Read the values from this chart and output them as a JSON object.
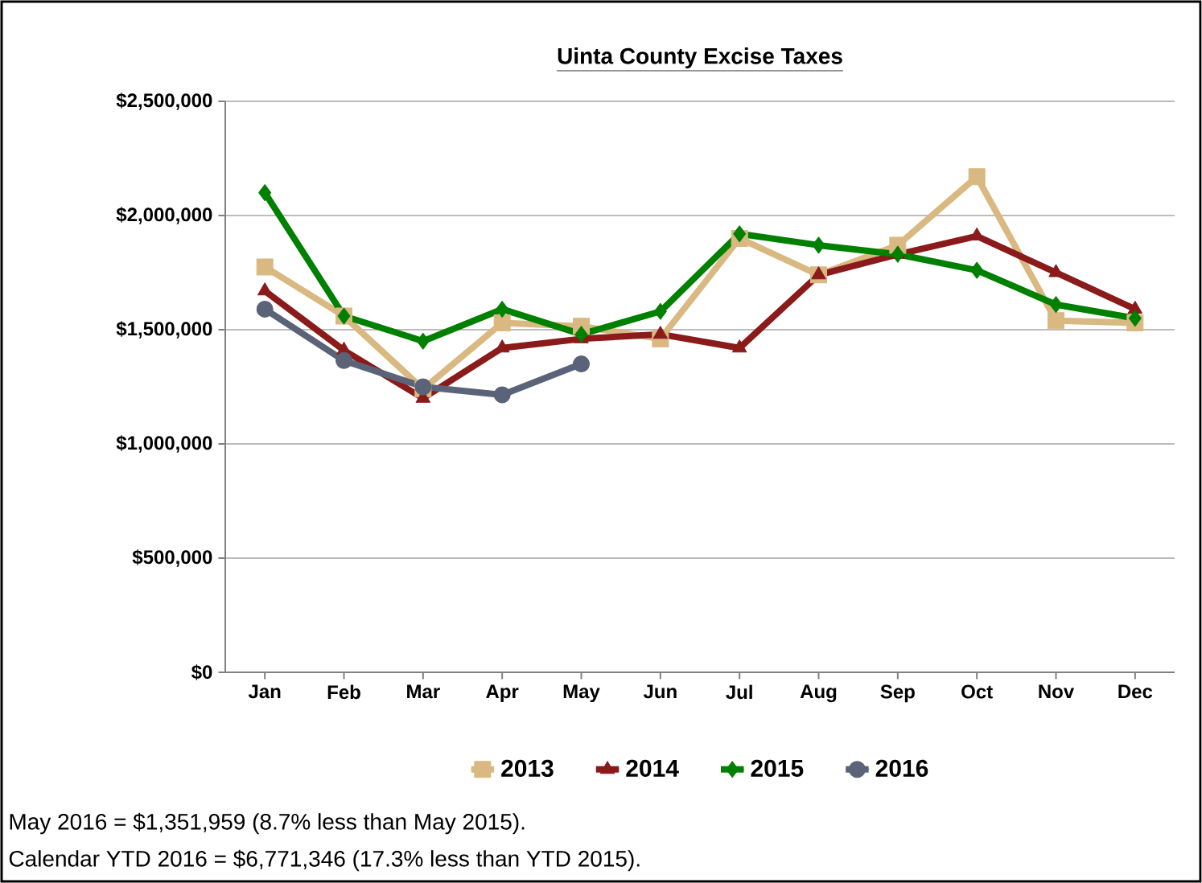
{
  "chart_data": {
    "type": "line",
    "title": "Uinta County Excise Taxes",
    "categories": [
      "Jan",
      "Feb",
      "Mar",
      "Apr",
      "May",
      "Jun",
      "Jul",
      "Aug",
      "Sep",
      "Oct",
      "Nov",
      "Dec"
    ],
    "series": [
      {
        "name": "2013",
        "color": "#d9b981",
        "marker": "square",
        "values": [
          1775000,
          1560000,
          1240000,
          1530000,
          1515000,
          1460000,
          1900000,
          1740000,
          1870000,
          2170000,
          1540000,
          1530000
        ]
      },
      {
        "name": "2014",
        "color": "#8b1a1a",
        "marker": "triangle",
        "values": [
          1670000,
          1410000,
          1200000,
          1420000,
          1460000,
          1480000,
          1420000,
          1740000,
          1830000,
          1910000,
          1750000,
          1590000
        ]
      },
      {
        "name": "2015",
        "color": "#008000",
        "marker": "diamond",
        "values": [
          2100000,
          1560000,
          1450000,
          1590000,
          1480000,
          1580000,
          1920000,
          1870000,
          1830000,
          1760000,
          1610000,
          1550000
        ]
      },
      {
        "name": "2016",
        "color": "#5a6378",
        "marker": "circle",
        "values": [
          1590000,
          1365000,
          1250000,
          1215000,
          1350000,
          null,
          null,
          null,
          null,
          null,
          null,
          null
        ]
      }
    ],
    "ylim": [
      0,
      2500000
    ],
    "yticks": [
      {
        "value": 0,
        "label": "$0"
      },
      {
        "value": 500000,
        "label": "$500,000"
      },
      {
        "value": 1000000,
        "label": "$1,000,000"
      },
      {
        "value": 1500000,
        "label": "$1,500,000"
      },
      {
        "value": 2000000,
        "label": "$2,000,000"
      },
      {
        "value": 2500000,
        "label": "$2,500,000"
      }
    ],
    "grid": "y",
    "legend": "bottom",
    "line_style": "solid",
    "annotations": [
      "May 2016 = $1,351,959 (8.7% less than May 2015).",
      "Calendar YTD 2016 = $6,771,346 (17.3% less than YTD 2015)."
    ]
  }
}
